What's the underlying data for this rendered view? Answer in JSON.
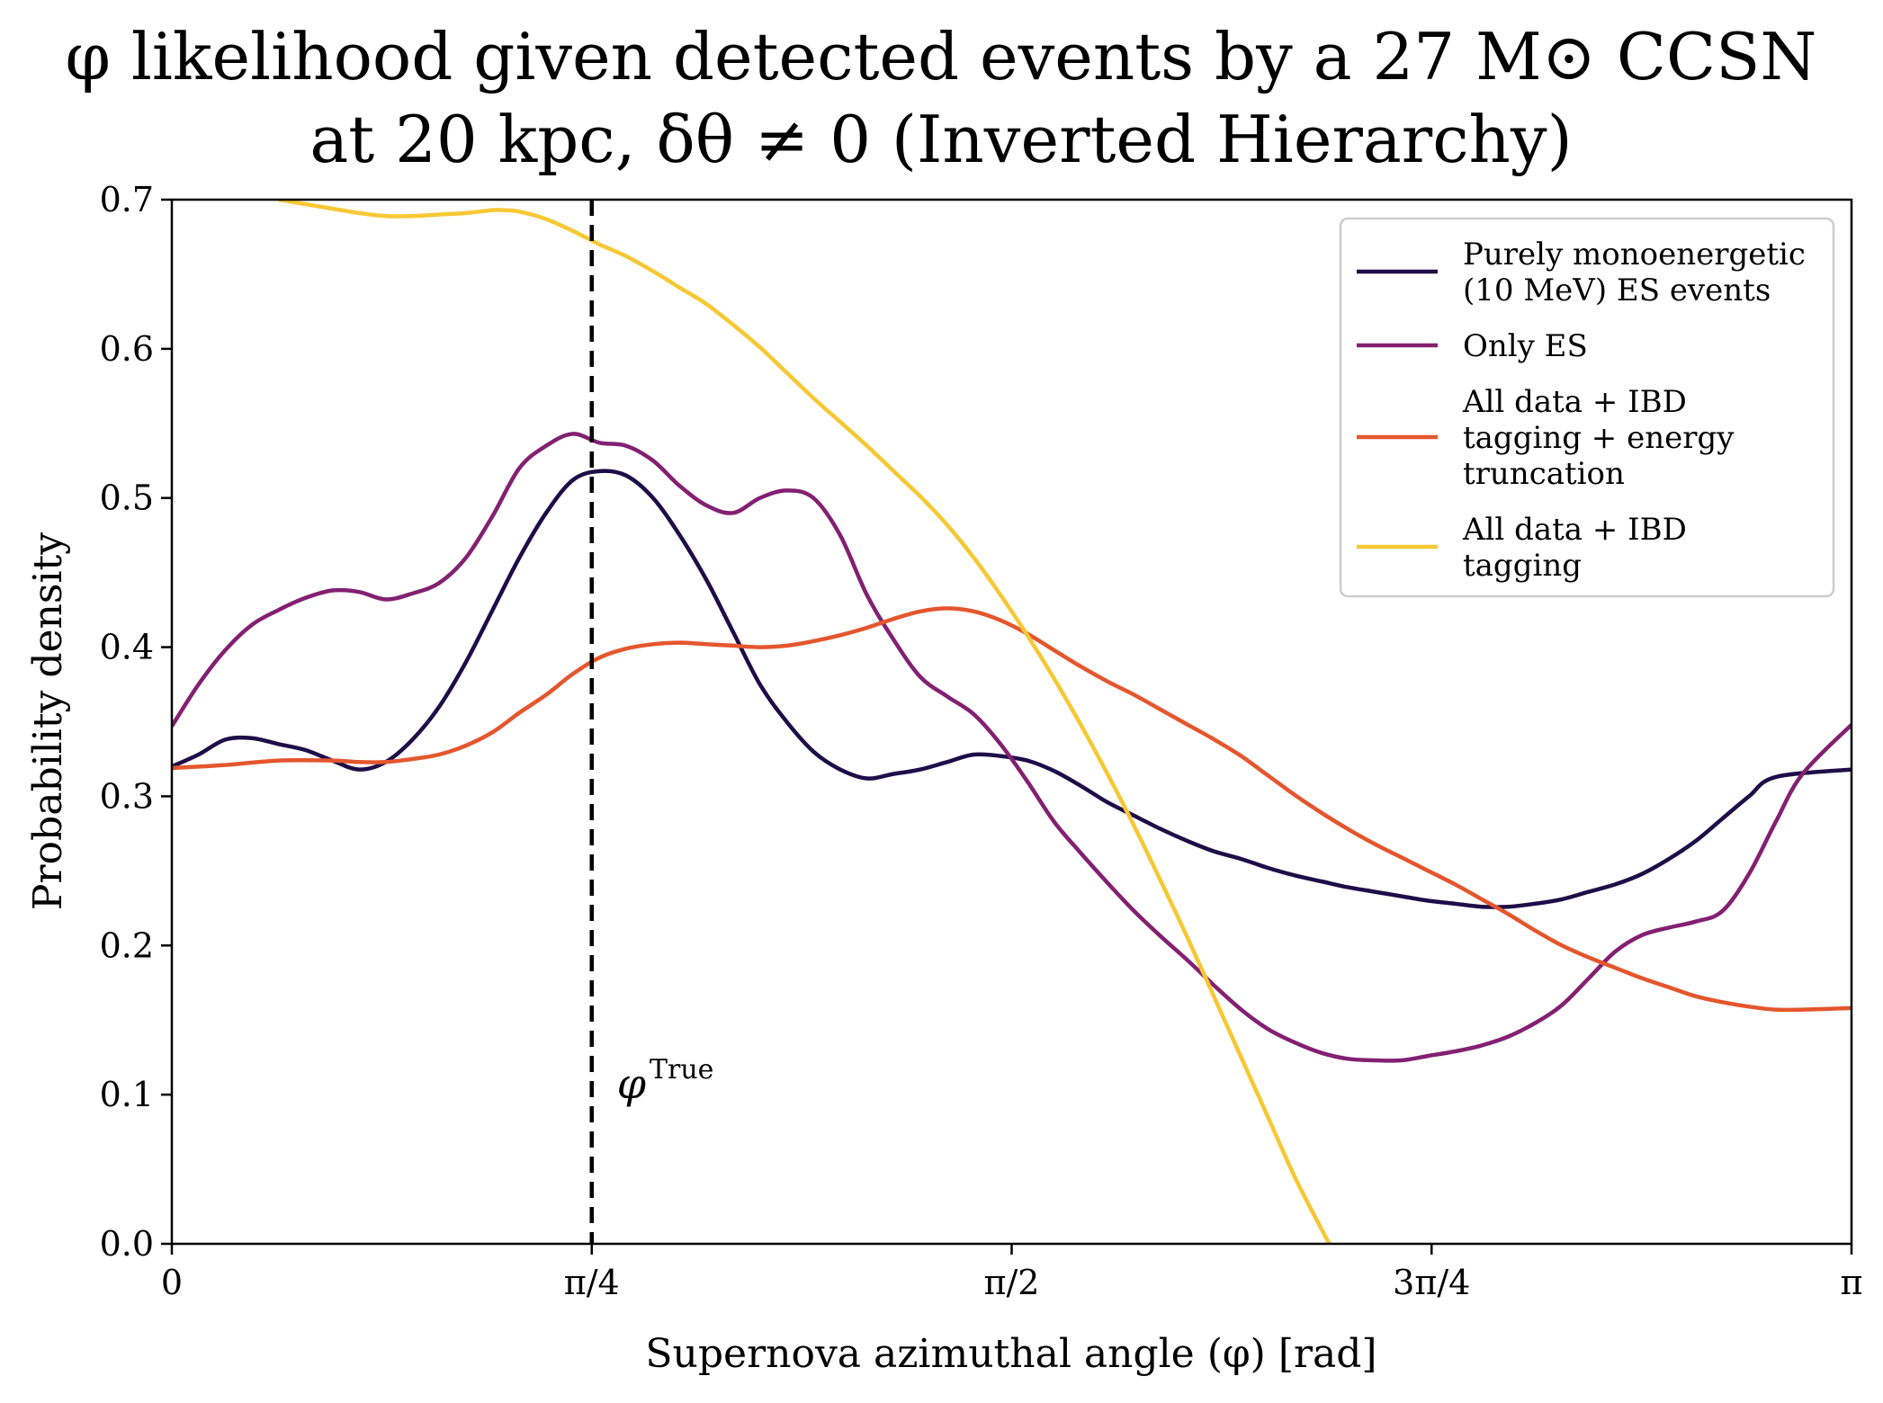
{
  "chart_data": {
    "type": "line",
    "title_line1": "φ likelihood given detected events by a 27 M⊙ CCSN",
    "title_line2": "at 20 kpc, δθ ≠ 0 (Inverted Hierarchy)",
    "xlabel": "Supernova azimuthal angle (φ) [rad]",
    "ylabel": "Probability density",
    "xlim": [
      0,
      3.14159
    ],
    "ylim": [
      0,
      0.7
    ],
    "x_ticks": [
      {
        "value": 0,
        "label": "0"
      },
      {
        "value": 0.785398,
        "label": "π/4"
      },
      {
        "value": 1.570796,
        "label": "π/2"
      },
      {
        "value": 2.356194,
        "label": "3π/4"
      },
      {
        "value": 3.141593,
        "label": "π"
      }
    ],
    "y_ticks": [
      0.0,
      0.1,
      0.2,
      0.3,
      0.4,
      0.5,
      0.6,
      0.7
    ],
    "y_tick_labels": [
      "0.0",
      "0.1",
      "0.2",
      "0.3",
      "0.4",
      "0.5",
      "0.6",
      "0.7"
    ],
    "grid": false,
    "legend_position": "top-right",
    "vline": {
      "x": 0.785398,
      "style": "dashed",
      "color": "#000000",
      "label_base": "φ",
      "label_sup": "True",
      "label_y": 0.105
    },
    "series": [
      {
        "name_lines": [
          "Purely monoenergetic",
          "(10 MeV) ES events"
        ],
        "color": "#1f0c48",
        "points": [
          [
            0,
            0.32
          ],
          [
            0.05,
            0.328
          ],
          [
            0.1,
            0.338
          ],
          [
            0.15,
            0.339
          ],
          [
            0.2,
            0.335
          ],
          [
            0.25,
            0.331
          ],
          [
            0.3,
            0.324
          ],
          [
            0.35,
            0.318
          ],
          [
            0.4,
            0.323
          ],
          [
            0.45,
            0.338
          ],
          [
            0.5,
            0.36
          ],
          [
            0.55,
            0.39
          ],
          [
            0.6,
            0.425
          ],
          [
            0.65,
            0.46
          ],
          [
            0.7,
            0.49
          ],
          [
            0.75,
            0.512
          ],
          [
            0.8,
            0.518
          ],
          [
            0.85,
            0.515
          ],
          [
            0.9,
            0.5
          ],
          [
            0.95,
            0.475
          ],
          [
            1.0,
            0.445
          ],
          [
            1.05,
            0.41
          ],
          [
            1.1,
            0.375
          ],
          [
            1.15,
            0.35
          ],
          [
            1.2,
            0.33
          ],
          [
            1.25,
            0.318
          ],
          [
            1.3,
            0.312
          ],
          [
            1.35,
            0.315
          ],
          [
            1.4,
            0.318
          ],
          [
            1.45,
            0.323
          ],
          [
            1.5,
            0.328
          ],
          [
            1.55,
            0.327
          ],
          [
            1.6,
            0.324
          ],
          [
            1.65,
            0.317
          ],
          [
            1.7,
            0.307
          ],
          [
            1.75,
            0.296
          ],
          [
            1.8,
            0.287
          ],
          [
            1.85,
            0.278
          ],
          [
            1.9,
            0.27
          ],
          [
            1.95,
            0.263
          ],
          [
            2.0,
            0.258
          ],
          [
            2.05,
            0.252
          ],
          [
            2.1,
            0.247
          ],
          [
            2.15,
            0.243
          ],
          [
            2.2,
            0.239
          ],
          [
            2.25,
            0.236
          ],
          [
            2.3,
            0.233
          ],
          [
            2.35,
            0.23
          ],
          [
            2.4,
            0.228
          ],
          [
            2.45,
            0.226
          ],
          [
            2.5,
            0.226
          ],
          [
            2.55,
            0.228
          ],
          [
            2.6,
            0.231
          ],
          [
            2.65,
            0.236
          ],
          [
            2.7,
            0.241
          ],
          [
            2.75,
            0.248
          ],
          [
            2.8,
            0.258
          ],
          [
            2.85,
            0.27
          ],
          [
            2.9,
            0.285
          ],
          [
            2.95,
            0.3
          ],
          [
            3.0,
            0.313
          ],
          [
            3.1416,
            0.318
          ]
        ]
      },
      {
        "name_lines": [
          "Only ES"
        ],
        "color": "#832072",
        "points": [
          [
            0,
            0.347
          ],
          [
            0.05,
            0.375
          ],
          [
            0.1,
            0.398
          ],
          [
            0.15,
            0.415
          ],
          [
            0.2,
            0.425
          ],
          [
            0.25,
            0.433
          ],
          [
            0.3,
            0.438
          ],
          [
            0.35,
            0.437
          ],
          [
            0.4,
            0.432
          ],
          [
            0.45,
            0.436
          ],
          [
            0.5,
            0.443
          ],
          [
            0.55,
            0.46
          ],
          [
            0.6,
            0.488
          ],
          [
            0.65,
            0.52
          ],
          [
            0.7,
            0.535
          ],
          [
            0.75,
            0.543
          ],
          [
            0.8,
            0.537
          ],
          [
            0.85,
            0.535
          ],
          [
            0.9,
            0.525
          ],
          [
            0.95,
            0.508
          ],
          [
            1.0,
            0.495
          ],
          [
            1.05,
            0.49
          ],
          [
            1.1,
            0.5
          ],
          [
            1.15,
            0.505
          ],
          [
            1.2,
            0.5
          ],
          [
            1.25,
            0.475
          ],
          [
            1.3,
            0.435
          ],
          [
            1.35,
            0.405
          ],
          [
            1.4,
            0.38
          ],
          [
            1.45,
            0.367
          ],
          [
            1.5,
            0.355
          ],
          [
            1.55,
            0.335
          ],
          [
            1.6,
            0.31
          ],
          [
            1.65,
            0.283
          ],
          [
            1.7,
            0.262
          ],
          [
            1.75,
            0.242
          ],
          [
            1.8,
            0.223
          ],
          [
            1.85,
            0.206
          ],
          [
            1.9,
            0.19
          ],
          [
            1.95,
            0.173
          ],
          [
            2.0,
            0.157
          ],
          [
            2.05,
            0.144
          ],
          [
            2.1,
            0.135
          ],
          [
            2.15,
            0.128
          ],
          [
            2.2,
            0.124
          ],
          [
            2.25,
            0.123
          ],
          [
            2.3,
            0.123
          ],
          [
            2.35,
            0.126
          ],
          [
            2.4,
            0.129
          ],
          [
            2.45,
            0.133
          ],
          [
            2.5,
            0.139
          ],
          [
            2.55,
            0.148
          ],
          [
            2.6,
            0.16
          ],
          [
            2.65,
            0.178
          ],
          [
            2.7,
            0.196
          ],
          [
            2.75,
            0.207
          ],
          [
            2.8,
            0.212
          ],
          [
            2.85,
            0.216
          ],
          [
            2.9,
            0.223
          ],
          [
            2.95,
            0.248
          ],
          [
            3.0,
            0.283
          ],
          [
            3.05,
            0.315
          ],
          [
            3.1416,
            0.348
          ]
        ]
      },
      {
        "name_lines": [
          "All data + IBD",
          "tagging + energy",
          "truncation"
        ],
        "color": "#e4562e",
        "points": [
          [
            0,
            0.319
          ],
          [
            0.1,
            0.321
          ],
          [
            0.2,
            0.324
          ],
          [
            0.3,
            0.324
          ],
          [
            0.35,
            0.323
          ],
          [
            0.4,
            0.323
          ],
          [
            0.45,
            0.325
          ],
          [
            0.5,
            0.328
          ],
          [
            0.55,
            0.334
          ],
          [
            0.6,
            0.343
          ],
          [
            0.65,
            0.356
          ],
          [
            0.7,
            0.368
          ],
          [
            0.75,
            0.382
          ],
          [
            0.8,
            0.393
          ],
          [
            0.85,
            0.399
          ],
          [
            0.9,
            0.402
          ],
          [
            0.95,
            0.403
          ],
          [
            1.0,
            0.402
          ],
          [
            1.05,
            0.401
          ],
          [
            1.1,
            0.4
          ],
          [
            1.15,
            0.401
          ],
          [
            1.2,
            0.404
          ],
          [
            1.25,
            0.408
          ],
          [
            1.3,
            0.413
          ],
          [
            1.35,
            0.419
          ],
          [
            1.4,
            0.424
          ],
          [
            1.45,
            0.426
          ],
          [
            1.5,
            0.424
          ],
          [
            1.55,
            0.418
          ],
          [
            1.6,
            0.409
          ],
          [
            1.65,
            0.398
          ],
          [
            1.7,
            0.387
          ],
          [
            1.75,
            0.377
          ],
          [
            1.8,
            0.368
          ],
          [
            1.85,
            0.358
          ],
          [
            1.9,
            0.348
          ],
          [
            1.95,
            0.338
          ],
          [
            2.0,
            0.327
          ],
          [
            2.05,
            0.314
          ],
          [
            2.1,
            0.301
          ],
          [
            2.15,
            0.289
          ],
          [
            2.2,
            0.278
          ],
          [
            2.25,
            0.268
          ],
          [
            2.3,
            0.259
          ],
          [
            2.35,
            0.25
          ],
          [
            2.4,
            0.241
          ],
          [
            2.45,
            0.231
          ],
          [
            2.5,
            0.221
          ],
          [
            2.55,
            0.21
          ],
          [
            2.6,
            0.2
          ],
          [
            2.65,
            0.192
          ],
          [
            2.7,
            0.185
          ],
          [
            2.75,
            0.178
          ],
          [
            2.8,
            0.172
          ],
          [
            2.85,
            0.166
          ],
          [
            2.9,
            0.162
          ],
          [
            2.95,
            0.159
          ],
          [
            3.0,
            0.157
          ],
          [
            3.05,
            0.157
          ],
          [
            3.1416,
            0.158
          ]
        ]
      },
      {
        "name_lines": [
          "All data + IBD",
          "tagging"
        ],
        "color": "#f6c834",
        "points": [
          [
            0.2,
            0.7
          ],
          [
            0.25,
            0.697
          ],
          [
            0.3,
            0.694
          ],
          [
            0.35,
            0.691
          ],
          [
            0.4,
            0.689
          ],
          [
            0.45,
            0.689
          ],
          [
            0.5,
            0.69
          ],
          [
            0.55,
            0.691
          ],
          [
            0.6,
            0.693
          ],
          [
            0.62,
            0.693
          ],
          [
            0.65,
            0.692
          ],
          [
            0.7,
            0.687
          ],
          [
            0.75,
            0.679
          ],
          [
            0.8,
            0.67
          ],
          [
            0.85,
            0.662
          ],
          [
            0.9,
            0.652
          ],
          [
            0.95,
            0.641
          ],
          [
            1.0,
            0.63
          ],
          [
            1.05,
            0.616
          ],
          [
            1.1,
            0.601
          ],
          [
            1.15,
            0.584
          ],
          [
            1.2,
            0.567
          ],
          [
            1.25,
            0.551
          ],
          [
            1.3,
            0.535
          ],
          [
            1.35,
            0.518
          ],
          [
            1.4,
            0.501
          ],
          [
            1.45,
            0.482
          ],
          [
            1.5,
            0.46
          ],
          [
            1.55,
            0.435
          ],
          [
            1.6,
            0.408
          ],
          [
            1.65,
            0.379
          ],
          [
            1.7,
            0.348
          ],
          [
            1.75,
            0.315
          ],
          [
            1.8,
            0.28
          ],
          [
            1.85,
            0.243
          ],
          [
            1.9,
            0.205
          ],
          [
            1.95,
            0.165
          ],
          [
            2.0,
            0.125
          ],
          [
            2.05,
            0.085
          ],
          [
            2.1,
            0.045
          ],
          [
            2.15,
            0.01
          ],
          [
            2.165,
            0.0
          ]
        ]
      }
    ]
  }
}
